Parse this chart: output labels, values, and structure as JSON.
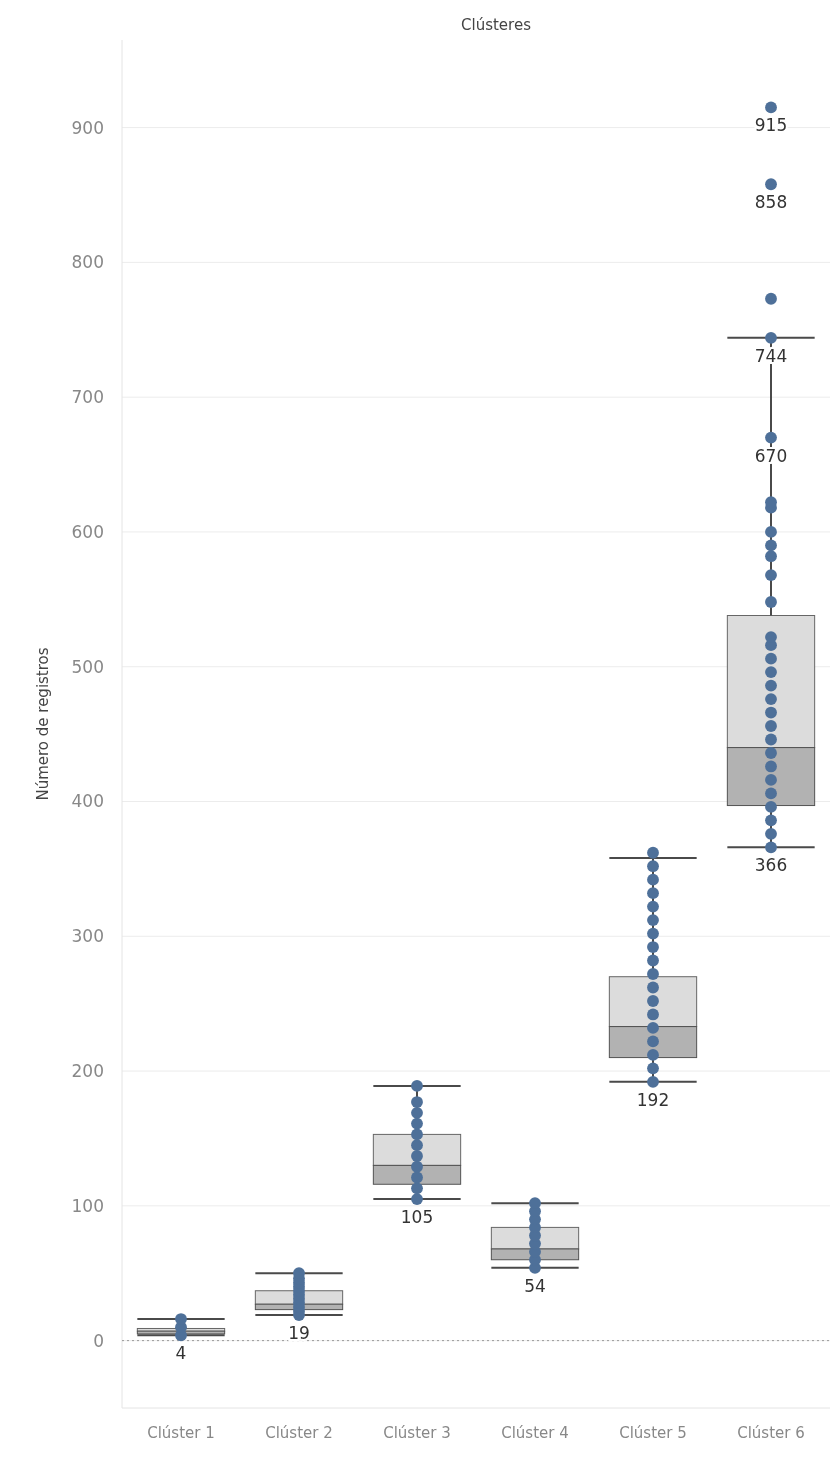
{
  "chart_data": {
    "type": "box",
    "colors": [
      "#dcdcdc",
      "#dcdcdc",
      "#dcdcdc",
      "#dcdcdc",
      "#dcdcdc",
      "#dcdcdc"
    ],
    "title": "Clústeres",
    "ylabel": "Número de registros",
    "categories": [
      "Clúster 1",
      "Clúster 2",
      "Clúster 3",
      "Clúster 4",
      "Clúster 5",
      "Clúster 6"
    ],
    "boxes": [
      {
        "low": 4,
        "q1": 5,
        "median": 7,
        "q3": 9,
        "high": 16
      },
      {
        "low": 19,
        "q1": 23,
        "median": 27,
        "q3": 37,
        "high": 50
      },
      {
        "low": 105,
        "q1": 116,
        "median": 130,
        "q3": 153,
        "high": 189
      },
      {
        "low": 54,
        "q1": 60,
        "median": 68,
        "q3": 84,
        "high": 102
      },
      {
        "low": 192,
        "q1": 210,
        "median": 233,
        "q3": 270,
        "high": 358
      },
      {
        "low": 366,
        "q1": 397,
        "median": 440,
        "q3": 538,
        "high": 744
      }
    ],
    "series": [
      {
        "type": "scatter",
        "color": "#4e7099",
        "x": [
          "Clúster 1",
          "Clúster 1",
          "Clúster 1",
          "Clúster 2",
          "Clúster 2",
          "Clúster 2",
          "Clúster 2",
          "Clúster 2",
          "Clúster 2",
          "Clúster 2",
          "Clúster 2",
          "Clúster 2",
          "Clúster 2",
          "Clúster 2",
          "Clúster 3",
          "Clúster 3",
          "Clúster 3",
          "Clúster 3",
          "Clúster 3",
          "Clúster 3",
          "Clúster 3",
          "Clúster 3",
          "Clúster 3",
          "Clúster 3",
          "Clúster 3",
          "Clúster 4",
          "Clúster 4",
          "Clúster 4",
          "Clúster 4",
          "Clúster 4",
          "Clúster 4",
          "Clúster 4",
          "Clúster 4",
          "Clúster 4",
          "Clúster 5",
          "Clúster 5",
          "Clúster 5",
          "Clúster 5",
          "Clúster 5",
          "Clúster 5",
          "Clúster 5",
          "Clúster 5",
          "Clúster 5",
          "Clúster 5",
          "Clúster 5",
          "Clúster 5",
          "Clúster 5",
          "Clúster 5",
          "Clúster 5",
          "Clúster 5",
          "Clúster 5",
          "Clúster 5",
          "Clúster 6",
          "Clúster 6",
          "Clúster 6",
          "Clúster 6",
          "Clúster 6",
          "Clúster 6",
          "Clúster 6",
          "Clúster 6",
          "Clúster 6",
          "Clúster 6",
          "Clúster 6",
          "Clúster 6",
          "Clúster 6",
          "Clúster 6",
          "Clúster 6",
          "Clúster 6",
          "Clúster 6",
          "Clúster 6",
          "Clúster 6",
          "Clúster 6",
          "Clúster 6",
          "Clúster 6",
          "Clúster 6",
          "Clúster 6",
          "Clúster 6",
          "Clúster 6",
          "Clúster 6",
          "Clúster 6",
          "Clúster 6"
        ],
        "values": [
          4,
          10,
          16,
          19,
          22,
          25,
          28,
          31,
          34,
          37,
          40,
          43,
          46,
          50,
          105,
          113,
          121,
          129,
          137,
          145,
          153,
          161,
          169,
          177,
          189,
          54,
          60,
          66,
          72,
          78,
          84,
          90,
          96,
          102,
          192,
          202,
          212,
          222,
          232,
          242,
          252,
          262,
          272,
          282,
          292,
          302,
          312,
          322,
          332,
          342,
          352,
          362,
          366,
          376,
          386,
          396,
          406,
          416,
          426,
          436,
          446,
          456,
          466,
          476,
          486,
          496,
          506,
          516,
          522,
          548,
          568,
          582,
          590,
          600,
          618,
          622,
          670,
          744,
          773,
          858,
          915
        ]
      }
    ],
    "annotations": [
      {
        "text": "4",
        "x": "Clúster 1",
        "y": 4
      },
      {
        "text": "19",
        "x": "Clúster 2",
        "y": 19
      },
      {
        "text": "105",
        "x": "Clúster 3",
        "y": 105
      },
      {
        "text": "54",
        "x": "Clúster 4",
        "y": 54
      },
      {
        "text": "192",
        "x": "Clúster 5",
        "y": 192
      },
      {
        "text": "366",
        "x": "Clúster 6",
        "y": 366
      },
      {
        "text": "670",
        "x": "Clúster 6",
        "y": 670
      },
      {
        "text": "744",
        "x": "Clúster 6",
        "y": 744
      },
      {
        "text": "858",
        "x": "Clúster 6",
        "y": 858
      },
      {
        "text": "915",
        "x": "Clúster 6",
        "y": 915
      }
    ],
    "ref_lines": [
      {
        "axis": "y",
        "value": 0,
        "line_style": "dotted",
        "color": "#999999"
      }
    ],
    "ylim": [
      -50,
      965
    ],
    "yticks": [
      0,
      100,
      200,
      300,
      400,
      500,
      600,
      700,
      800,
      900
    ],
    "grid": "y",
    "marker": "circle"
  }
}
